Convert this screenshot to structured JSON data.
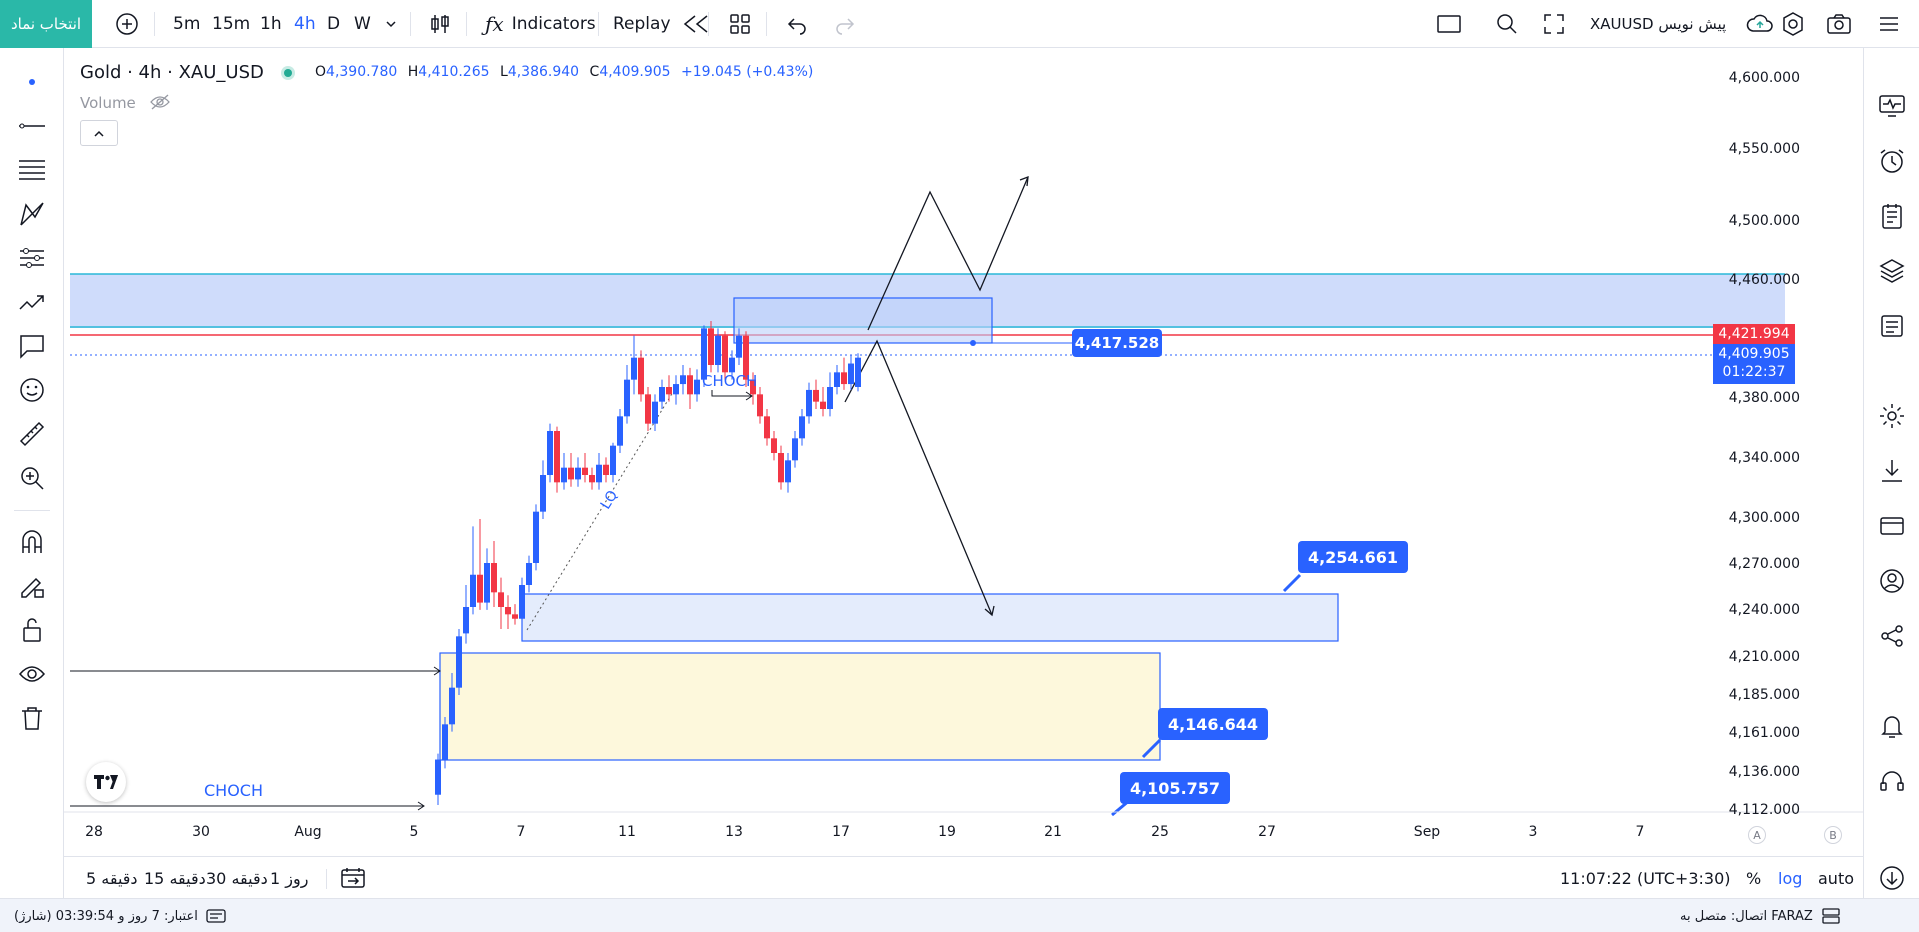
{
  "toolbar": {
    "symbol_button": "انتخاب نماد",
    "timeframes": [
      "5m",
      "15m",
      "1h",
      "4h",
      "D",
      "W"
    ],
    "active_timeframe": "4h",
    "indicators": "Indicators",
    "replay": "Replay",
    "symbol_label": "XAUUSD پیش نویس"
  },
  "legend": {
    "title": "Gold · 4h · XAU_USD",
    "o_label": "O",
    "o": "4,390.780",
    "h_label": "H",
    "h": "4,410.265",
    "l_label": "L",
    "l": "4,386.940",
    "c_label": "C",
    "c": "4,409.905",
    "change": "+19.045 (+0.43%)",
    "volume": "Volume"
  },
  "axis": {
    "y_ticks": [
      "4,600.000",
      "4,550.000",
      "4,500.000",
      "4,460.000",
      "4,380.000",
      "4,340.000",
      "4,300.000",
      "4,270.000",
      "4,240.000",
      "4,210.000",
      "4,185.000",
      "4,161.000",
      "4,136.000",
      "4,112.000"
    ],
    "x_ticks": [
      "28",
      "30",
      "Aug",
      "5",
      "7",
      "11",
      "13",
      "17",
      "19",
      "21",
      "25",
      "27",
      "Sep",
      "3",
      "7"
    ],
    "mode_a": "A",
    "mode_b": "B"
  },
  "prices": {
    "red_line": "4,421.994",
    "current": "4,409.905",
    "countdown": "01:22:37"
  },
  "callouts": {
    "c1": "4,417.528",
    "c2": "4,254.661",
    "c3": "4,146.644",
    "c4": "4,105.757"
  },
  "annotations": {
    "choch_top": "CHOCH",
    "choch_bottom": "CHOCH",
    "lq": "LQ"
  },
  "bottom": {
    "ranges": [
      "5 دقیقه",
      "15 دقیقه",
      "30 دقیقه",
      "1 روز"
    ],
    "time": "11:07:22 (UTC+3:30)",
    "percent": "%",
    "log": "log",
    "auto": "auto"
  },
  "status": {
    "credit": "اعتبار: 7 روز و 03:39:54 (شارژ)",
    "connection": "اتصال: متصل به FARAZ"
  },
  "colors": {
    "accent": "#2962ff",
    "up": "#2962ff",
    "down": "#f23645",
    "symbol_btn": "#2ab8a8"
  },
  "chart_data": {
    "type": "candlestick",
    "ylim": [
      4100,
      4620
    ],
    "candles": [
      {
        "x": 438,
        "o": 4112,
        "c": 4136,
        "h": 4140,
        "l": 4105
      },
      {
        "x": 445,
        "o": 4136,
        "c": 4160,
        "h": 4165,
        "l": 4130
      },
      {
        "x": 452,
        "o": 4160,
        "c": 4185,
        "h": 4195,
        "l": 4155
      },
      {
        "x": 459,
        "o": 4185,
        "c": 4220,
        "h": 4225,
        "l": 4180
      },
      {
        "x": 466,
        "o": 4222,
        "c": 4240,
        "h": 4255,
        "l": 4215
      },
      {
        "x": 473,
        "o": 4240,
        "c": 4262,
        "h": 4295,
        "l": 4235
      },
      {
        "x": 480,
        "o": 4262,
        "c": 4243,
        "h": 4300,
        "l": 4238
      },
      {
        "x": 487,
        "o": 4243,
        "c": 4270,
        "h": 4280,
        "l": 4238
      },
      {
        "x": 494,
        "o": 4270,
        "c": 4250,
        "h": 4285,
        "l": 4240
      },
      {
        "x": 501,
        "o": 4250,
        "c": 4240,
        "h": 4260,
        "l": 4225
      },
      {
        "x": 508,
        "o": 4240,
        "c": 4235,
        "h": 4248,
        "l": 4225
      },
      {
        "x": 515,
        "o": 4235,
        "c": 4232,
        "h": 4242,
        "l": 4228
      },
      {
        "x": 522,
        "o": 4232,
        "c": 4255,
        "h": 4260,
        "l": 4228
      },
      {
        "x": 529,
        "o": 4255,
        "c": 4270,
        "h": 4275,
        "l": 4250
      },
      {
        "x": 536,
        "o": 4270,
        "c": 4305,
        "h": 4310,
        "l": 4265
      },
      {
        "x": 543,
        "o": 4305,
        "c": 4330,
        "h": 4340,
        "l": 4300
      },
      {
        "x": 550,
        "o": 4330,
        "c": 4360,
        "h": 4365,
        "l": 4325
      },
      {
        "x": 557,
        "o": 4360,
        "c": 4325,
        "h": 4363,
        "l": 4318
      },
      {
        "x": 564,
        "o": 4325,
        "c": 4335,
        "h": 4345,
        "l": 4320
      },
      {
        "x": 571,
        "o": 4335,
        "c": 4327,
        "h": 4345,
        "l": 4322
      },
      {
        "x": 578,
        "o": 4327,
        "c": 4335,
        "h": 4342,
        "l": 4322
      },
      {
        "x": 585,
        "o": 4335,
        "c": 4330,
        "h": 4345,
        "l": 4325
      },
      {
        "x": 592,
        "o": 4330,
        "c": 4325,
        "h": 4335,
        "l": 4320
      },
      {
        "x": 599,
        "o": 4325,
        "c": 4337,
        "h": 4345,
        "l": 4320
      },
      {
        "x": 606,
        "o": 4337,
        "c": 4330,
        "h": 4342,
        "l": 4325
      },
      {
        "x": 613,
        "o": 4330,
        "c": 4350,
        "h": 4352,
        "l": 4325
      },
      {
        "x": 620,
        "o": 4350,
        "c": 4370,
        "h": 4375,
        "l": 4345
      },
      {
        "x": 627,
        "o": 4370,
        "c": 4395,
        "h": 4405,
        "l": 4365
      },
      {
        "x": 634,
        "o": 4395,
        "c": 4410,
        "h": 4425,
        "l": 4385
      },
      {
        "x": 641,
        "o": 4410,
        "c": 4385,
        "h": 4415,
        "l": 4380
      },
      {
        "x": 648,
        "o": 4385,
        "c": 4365,
        "h": 4390,
        "l": 4360
      },
      {
        "x": 655,
        "o": 4365,
        "c": 4380,
        "h": 4385,
        "l": 4360
      },
      {
        "x": 662,
        "o": 4380,
        "c": 4390,
        "h": 4395,
        "l": 4375
      },
      {
        "x": 669,
        "o": 4390,
        "c": 4385,
        "h": 4398,
        "l": 4380
      },
      {
        "x": 676,
        "o": 4385,
        "c": 4392,
        "h": 4398,
        "l": 4378
      },
      {
        "x": 683,
        "o": 4392,
        "c": 4398,
        "h": 4405,
        "l": 4385
      },
      {
        "x": 690,
        "o": 4398,
        "c": 4385,
        "h": 4403,
        "l": 4375
      },
      {
        "x": 697,
        "o": 4385,
        "c": 4395,
        "h": 4402,
        "l": 4380
      },
      {
        "x": 704,
        "o": 4395,
        "c": 4430,
        "h": 4432,
        "l": 4390
      },
      {
        "x": 711,
        "o": 4430,
        "c": 4405,
        "h": 4435,
        "l": 4400
      },
      {
        "x": 718,
        "o": 4405,
        "c": 4425,
        "h": 4430,
        "l": 4400
      },
      {
        "x": 725,
        "o": 4425,
        "c": 4400,
        "h": 4428,
        "l": 4395
      },
      {
        "x": 732,
        "o": 4400,
        "c": 4410,
        "h": 4415,
        "l": 4395
      },
      {
        "x": 739,
        "o": 4410,
        "c": 4425,
        "h": 4430,
        "l": 4405
      },
      {
        "x": 746,
        "o": 4425,
        "c": 4395,
        "h": 4428,
        "l": 4390
      },
      {
        "x": 753,
        "o": 4395,
        "c": 4385,
        "h": 4400,
        "l": 4378
      },
      {
        "x": 760,
        "o": 4385,
        "c": 4370,
        "h": 4390,
        "l": 4365
      },
      {
        "x": 767,
        "o": 4370,
        "c": 4355,
        "h": 4375,
        "l": 4350
      },
      {
        "x": 774,
        "o": 4355,
        "c": 4345,
        "h": 4360,
        "l": 4340
      },
      {
        "x": 781,
        "o": 4345,
        "c": 4325,
        "h": 4350,
        "l": 4320
      },
      {
        "x": 788,
        "o": 4325,
        "c": 4340,
        "h": 4345,
        "l": 4318
      },
      {
        "x": 795,
        "o": 4340,
        "c": 4355,
        "h": 4360,
        "l": 4335
      },
      {
        "x": 802,
        "o": 4355,
        "c": 4370,
        "h": 4375,
        "l": 4350
      },
      {
        "x": 809,
        "o": 4370,
        "c": 4388,
        "h": 4393,
        "l": 4365
      },
      {
        "x": 816,
        "o": 4388,
        "c": 4380,
        "h": 4395,
        "l": 4375
      },
      {
        "x": 823,
        "o": 4380,
        "c": 4375,
        "h": 4390,
        "l": 4370
      },
      {
        "x": 830,
        "o": 4375,
        "c": 4390,
        "h": 4400,
        "l": 4370
      },
      {
        "x": 837,
        "o": 4390,
        "c": 4400,
        "h": 4405,
        "l": 4385
      },
      {
        "x": 844,
        "o": 4400,
        "c": 4392,
        "h": 4410,
        "l": 4388
      },
      {
        "x": 851,
        "o": 4392,
        "c": 4406,
        "h": 4412,
        "l": 4388
      },
      {
        "x": 858,
        "o": 4390,
        "c": 4410,
        "h": 4413,
        "l": 4387
      }
    ]
  }
}
